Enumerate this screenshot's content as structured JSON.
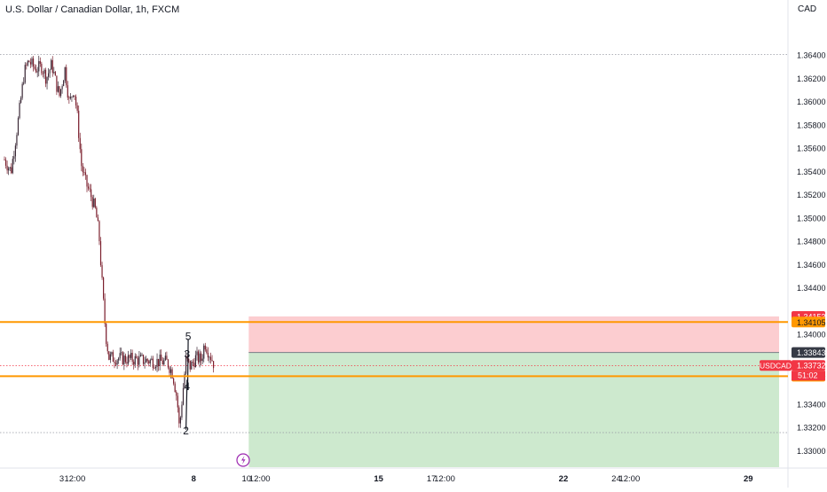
{
  "chart_data": {
    "type": "candlestick",
    "title": "U.S. Dollar / Canadian Dollar, 1h, FXCM",
    "currency": "CAD",
    "ylim": [
      1.3285,
      1.3672
    ],
    "y_ticks": [
      {
        "value": 1.364,
        "label": "1.36400"
      },
      {
        "value": 1.362,
        "label": "1.36200"
      },
      {
        "value": 1.36,
        "label": "1.36000"
      },
      {
        "value": 1.358,
        "label": "1.35800"
      },
      {
        "value": 1.356,
        "label": "1.35600"
      },
      {
        "value": 1.354,
        "label": "1.35400"
      },
      {
        "value": 1.352,
        "label": "1.35200"
      },
      {
        "value": 1.35,
        "label": "1.35000"
      },
      {
        "value": 1.348,
        "label": "1.34800"
      },
      {
        "value": 1.346,
        "label": "1.34600"
      },
      {
        "value": 1.344,
        "label": "1.34400"
      },
      {
        "value": 1.34,
        "label": "1.34000"
      },
      {
        "value": 1.334,
        "label": "1.33400"
      },
      {
        "value": 1.332,
        "label": "1.33200"
      },
      {
        "value": 1.33,
        "label": "1.33000"
      }
    ],
    "x_axis": {
      "start": "2023-07-31T20:00",
      "end": "2023-08-30T04:00",
      "ticks": [
        {
          "t": "2023-08-03T00:00",
          "label": "3",
          "bold": false
        },
        {
          "t": "2023-08-03T12:00",
          "label": "12:00",
          "bold": false
        },
        {
          "t": "2023-08-08T00:00",
          "label": "8",
          "bold": true
        },
        {
          "t": "2023-08-10T00:00",
          "label": "10",
          "bold": false
        },
        {
          "t": "2023-08-10T12:00",
          "label": "12:00",
          "bold": false
        },
        {
          "t": "2023-08-15T00:00",
          "label": "15",
          "bold": true
        },
        {
          "t": "2023-08-17T00:00",
          "label": "17",
          "bold": false
        },
        {
          "t": "2023-08-17T12:00",
          "label": "12:00",
          "bold": false
        },
        {
          "t": "2023-08-22T00:00",
          "label": "22",
          "bold": true
        },
        {
          "t": "2023-08-24T00:00",
          "label": "24",
          "bold": false
        },
        {
          "t": "2023-08-24T12:00",
          "label": "12:00",
          "bold": false
        },
        {
          "t": "2023-08-29T00:00",
          "label": "29",
          "bold": true
        }
      ]
    },
    "price_path": [
      [
        "2023-07-31T20:00",
        1.355
      ],
      [
        "2023-08-01T02:00",
        1.354
      ],
      [
        "2023-08-01T08:00",
        1.358
      ],
      [
        "2023-08-01T14:00",
        1.3625
      ],
      [
        "2023-08-01T18:00",
        1.3635
      ],
      [
        "2023-08-02T00:00",
        1.3628
      ],
      [
        "2023-08-02T06:00",
        1.363
      ],
      [
        "2023-08-02T10:00",
        1.362
      ],
      [
        "2023-08-02T15:00",
        1.3632
      ],
      [
        "2023-08-02T19:00",
        1.3615
      ],
      [
        "2023-08-02T22:00",
        1.3605
      ],
      [
        "2023-08-03T03:00",
        1.3628
      ],
      [
        "2023-08-03T07:00",
        1.3598
      ],
      [
        "2023-08-03T11:00",
        1.3612
      ],
      [
        "2023-08-03T14:00",
        1.359
      ],
      [
        "2023-08-03T18:00",
        1.3545
      ],
      [
        "2023-08-03T22:00",
        1.353
      ],
      [
        "2023-08-04T03:00",
        1.3518
      ],
      [
        "2023-08-04T07:00",
        1.3505
      ],
      [
        "2023-08-04T10:00",
        1.3485
      ],
      [
        "2023-08-04T13:00",
        1.344
      ],
      [
        "2023-08-04T16:00",
        1.34
      ],
      [
        "2023-08-04T19:00",
        1.338
      ],
      [
        "2023-08-07T00:00",
        1.3376
      ],
      [
        "2023-08-07T05:00",
        1.3366
      ],
      [
        "2023-08-07T09:00",
        1.3344
      ],
      [
        "2023-08-07T11:00",
        1.3318
      ],
      [
        "2023-08-07T13:00",
        1.334
      ],
      [
        "2023-08-07T17:00",
        1.3378
      ],
      [
        "2023-08-07T21:00",
        1.3372
      ],
      [
        "2023-08-08T02:00",
        1.338
      ],
      [
        "2023-08-08T07:00",
        1.3378
      ],
      [
        "2023-08-08T10:00",
        1.3393
      ],
      [
        "2023-08-08T13:00",
        1.3386
      ],
      [
        "2023-08-08T16:00",
        1.338
      ],
      [
        "2023-08-08T19:00",
        1.3373
      ]
    ],
    "wave_labels": [
      {
        "label": "5",
        "t": "2023-08-07T19:00",
        "y": 1.3395
      },
      {
        "label": "3",
        "t": "2023-08-07T18:00",
        "y": 1.338
      },
      {
        "label": "4",
        "t": "2023-08-07T18:00",
        "y": 1.3352
      },
      {
        "label": "2",
        "t": "2023-08-07T17:00",
        "y": 1.3314
      }
    ],
    "wave_path": [
      [
        "2023-08-07T17:00",
        1.3318
      ],
      [
        "2023-08-07T18:00",
        1.3361
      ],
      [
        "2023-08-07T18:30",
        1.3352
      ],
      [
        "2023-08-07T19:00",
        1.3396
      ]
    ],
    "horizontal_levels": [
      {
        "value": 1.36405,
        "color": "#9598a1",
        "style": "dotted"
      },
      {
        "value": 1.33155,
        "color": "#9598a1",
        "style": "dotted"
      },
      {
        "value": 1.3373,
        "color": "#f23645",
        "style": "dotted"
      }
    ],
    "orange_levels": [
      1.34105,
      1.33639
    ],
    "position": {
      "start": "2023-08-10T02:00",
      "end": "2023-08-30T04:00",
      "stop": 1.34153,
      "entry": 1.33843,
      "target": 1.3285
    },
    "price_labels": [
      {
        "value": 1.34153,
        "text": "1.34153",
        "bg": "#f23645",
        "fg": "#ffffff"
      },
      {
        "value": 1.34105,
        "text": "1.34105",
        "bg": "#ff9800",
        "fg": "#131722"
      },
      {
        "value": 1.33843,
        "text": "1.33843",
        "bg": "#363a45",
        "fg": "#ffffff"
      },
      {
        "value": 1.33732,
        "text": "1.33732",
        "bg": "#f23645",
        "fg": "#ffffff"
      },
      {
        "value": 1.33639,
        "text": "1.33639",
        "bg": "#ff9800",
        "fg": "#131722"
      }
    ],
    "symbol_tag": "USDCAD",
    "countdown": "51:02",
    "icon": "lightning-icon"
  },
  "colors": {
    "up": "#26a69a",
    "down": "#7b1f2d",
    "candle": "#3a2836",
    "orange": "#ff9800",
    "stop_zone": "rgba(242,54,69,0.25)",
    "target_zone": "rgba(76,175,80,0.28)",
    "grid_text": "#131722"
  }
}
